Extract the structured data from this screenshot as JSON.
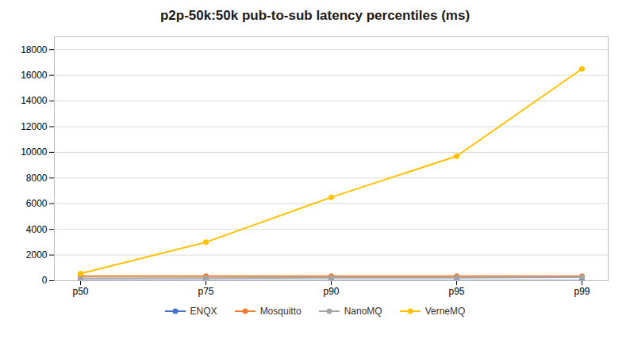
{
  "chart_data": {
    "type": "line",
    "title": "p2p-50k:50k pub-to-sub latency percentiles (ms)",
    "categories": [
      "p50",
      "p75",
      "p90",
      "p95",
      "p99"
    ],
    "series": [
      {
        "name": "ENQX",
        "color": "#4472C4",
        "marker": "circle",
        "values": [
          2,
          2,
          2,
          2,
          2
        ]
      },
      {
        "name": "Mosquitto",
        "color": "#ED7D31",
        "marker": "circle",
        "values": [
          350,
          350,
          350,
          350,
          350
        ]
      },
      {
        "name": "NanoMQ",
        "color": "#A5A5A5",
        "marker": "circle",
        "values": [
          180,
          200,
          230,
          230,
          270
        ]
      },
      {
        "name": "VerneMQ",
        "color": "#FFC000",
        "marker": "circle",
        "values": [
          550,
          3000,
          6500,
          9700,
          16500
        ]
      }
    ],
    "ylim": [
      0,
      19000
    ],
    "yticks": [
      0,
      2000,
      4000,
      6000,
      8000,
      10000,
      12000,
      14000,
      16000,
      18000
    ],
    "grid": true,
    "legend": "bottom"
  }
}
